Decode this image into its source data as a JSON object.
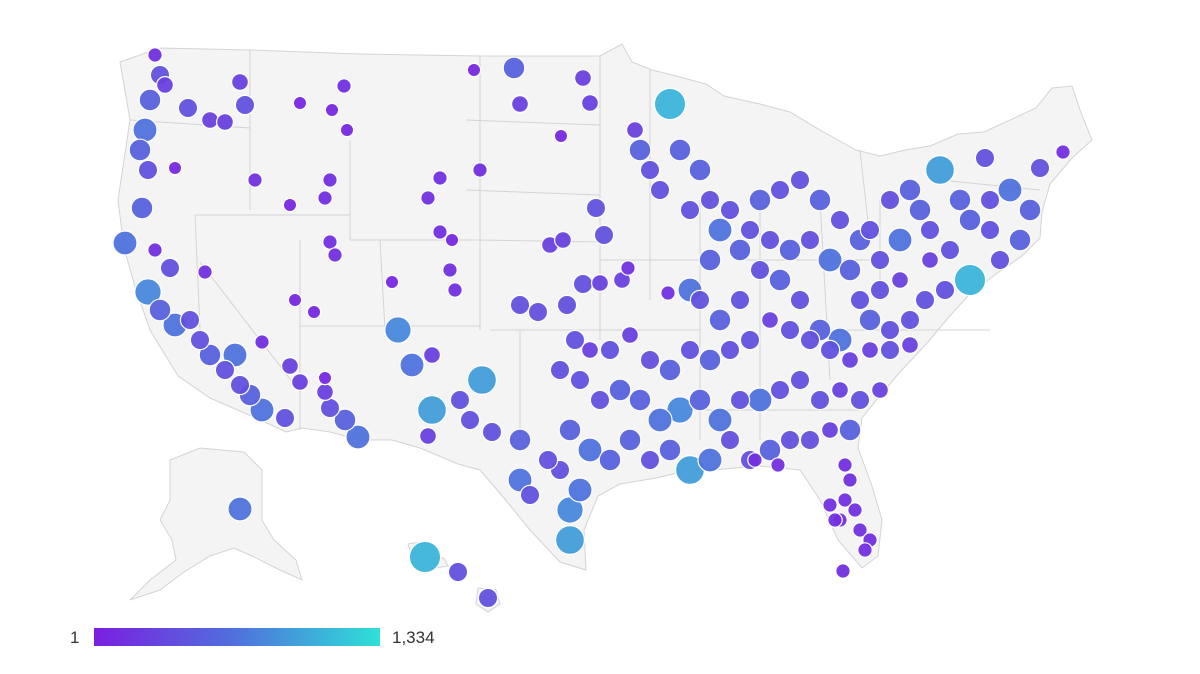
{
  "legend": {
    "min_label": "1",
    "max_label": "1,334",
    "min_value": 1,
    "max_value": 1334,
    "color_low": "#7b1fe0",
    "color_mid": "#4f72dc",
    "color_high": "#2ee0d8"
  },
  "colors": {
    "land": "#f4f4f4",
    "border": "#d4d4d4",
    "bubble_stroke": "#ffffff",
    "background": "#ffffff"
  }
}
